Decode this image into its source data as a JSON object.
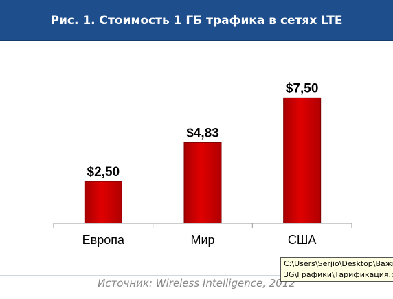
{
  "header": {
    "title": "Рис. 1. Стоимость 1 ГБ трафика в сетях LTE"
  },
  "chart_data": {
    "type": "bar",
    "title": "Рис. 1. Стоимость 1 ГБ трафика в сетях LTE",
    "categories": [
      "Европа",
      "Мир",
      "США"
    ],
    "values": [
      2.5,
      4.83,
      7.5
    ],
    "value_labels": [
      "$2,50",
      "$4,83",
      "$7,50"
    ],
    "xlabel": "",
    "ylabel": "",
    "ylim": [
      0,
      8.5
    ],
    "grid": false,
    "bar_color": "#d40000"
  },
  "source": "Источник: Wireless Intelligence, 2012",
  "tooltip": {
    "line1": "C:\\Users\\Serjio\\Desktop\\Важн",
    "line2": "3G\\Графики\\Тарификация.р"
  }
}
